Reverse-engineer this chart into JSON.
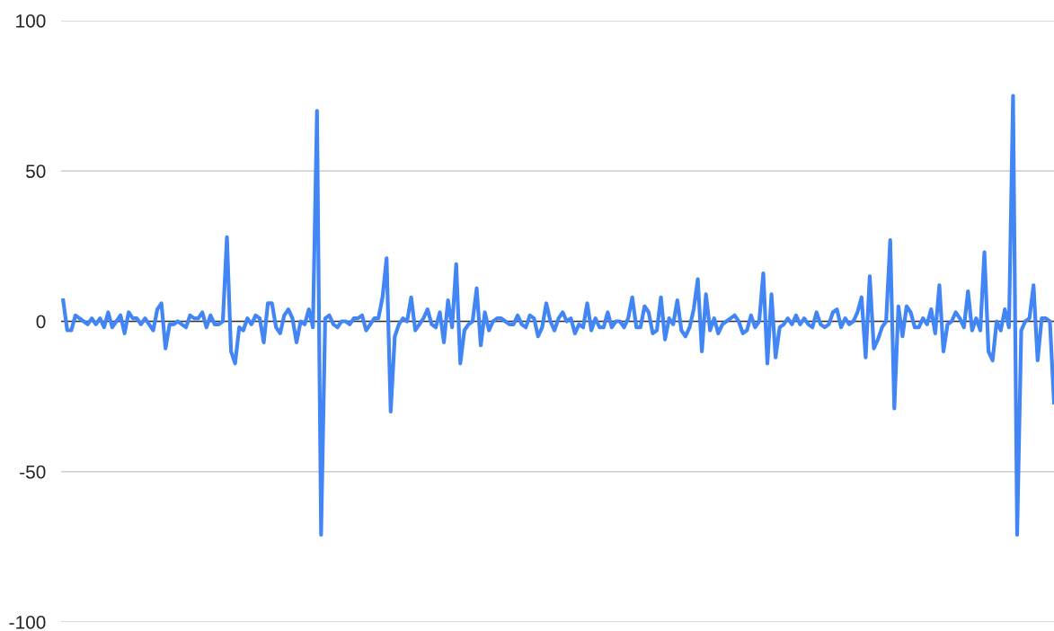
{
  "chart_data": {
    "type": "line",
    "categories": [
      null,
      null,
      null,
      null,
      null,
      null,
      null,
      null,
      null,
      null,
      null,
      null,
      null,
      null,
      null,
      null,
      null,
      null,
      null,
      null,
      null,
      null,
      null,
      null,
      null,
      null,
      null,
      null,
      null,
      null,
      null,
      null,
      null,
      null,
      null,
      null,
      null,
      null,
      null,
      null,
      null,
      null,
      null,
      null,
      null,
      null,
      null,
      null,
      null,
      null,
      null,
      null,
      null,
      null,
      null,
      null,
      null,
      null,
      null,
      null,
      null,
      null,
      null,
      null,
      null,
      null,
      null,
      null,
      null,
      null,
      null,
      null,
      null,
      null,
      null,
      null,
      null,
      null,
      null,
      null,
      null,
      null,
      null,
      null,
      null,
      null,
      null,
      null,
      null,
      null,
      null,
      null,
      null,
      null,
      null,
      null,
      null,
      null,
      null,
      null,
      null,
      null,
      null,
      null,
      null,
      null,
      null,
      null,
      null,
      null,
      null,
      null,
      null,
      null,
      null,
      null,
      null,
      null,
      null,
      null,
      null,
      null,
      null,
      null,
      null,
      null,
      null,
      null,
      null,
      null,
      null,
      null,
      null,
      null,
      null,
      null,
      null,
      null,
      null,
      null,
      null,
      null,
      null,
      null,
      null,
      null,
      null,
      null,
      null,
      null,
      null,
      null,
      null,
      null,
      null,
      null,
      null,
      null,
      null,
      null,
      null,
      null,
      null,
      null,
      null,
      null,
      null,
      null,
      null,
      null,
      null,
      null,
      null,
      null,
      null,
      null,
      null,
      null,
      null,
      null,
      null,
      null,
      null,
      null,
      null,
      null,
      null,
      null,
      null,
      null,
      null,
      null,
      null,
      null,
      null,
      null,
      null,
      null,
      null,
      null,
      null,
      null,
      null,
      null,
      null,
      null,
      null,
      null,
      null,
      null,
      null,
      null,
      null,
      null,
      null,
      null,
      null,
      null,
      null,
      null,
      null,
      null,
      null,
      null,
      null,
      null,
      null,
      null,
      null,
      null,
      null,
      null,
      null,
      null,
      null,
      null,
      null,
      null,
      null,
      null,
      null,
      null,
      null
    ],
    "series": [
      {
        "color": "#4285f4",
        "values": [
          7,
          -3,
          -3,
          2,
          1,
          0,
          -1,
          1,
          -1,
          1,
          -2,
          3,
          -2,
          0,
          2,
          -4,
          3,
          1,
          1,
          -1,
          1,
          -1,
          -3,
          4,
          6,
          -9,
          -1,
          -1,
          0,
          -1,
          -2,
          2,
          1,
          1,
          3,
          -2,
          2,
          -1,
          -1,
          0,
          28,
          -10,
          -14,
          -2,
          -3,
          1,
          -1,
          2,
          1,
          -7,
          6,
          6,
          -2,
          -4,
          2,
          4,
          1,
          -7,
          0,
          -1,
          4,
          -2,
          70,
          -71,
          1,
          2,
          -1,
          -2,
          0,
          0,
          -1,
          1,
          1,
          2,
          -3,
          -1,
          1,
          1,
          8,
          21,
          -30,
          -5,
          -1,
          1,
          0,
          8,
          -3,
          -1,
          1,
          4,
          -1,
          -2,
          3,
          -7,
          7,
          -2,
          19,
          -14,
          -3,
          -1,
          0,
          11,
          -8,
          3,
          -3,
          0,
          1,
          1,
          0,
          -1,
          -1,
          2,
          -1,
          -2,
          2,
          1,
          -5,
          -2,
          6,
          0,
          -3,
          1,
          3,
          0,
          1,
          -4,
          -1,
          -2,
          6,
          -3,
          1,
          -2,
          -2,
          3,
          -2,
          0,
          0,
          -2,
          1,
          8,
          -2,
          -2,
          5,
          3,
          -4,
          -3,
          8,
          -6,
          1,
          -1,
          7,
          -3,
          -5,
          -2,
          4,
          14,
          -10,
          9,
          -3,
          1,
          -4,
          -1,
          0,
          1,
          2,
          0,
          -4,
          -3,
          2,
          -2,
          0,
          16,
          -14,
          9,
          -12,
          -2,
          -1,
          1,
          -1,
          2,
          -1,
          1,
          -1,
          -2,
          3,
          -1,
          -2,
          -1,
          3,
          4,
          -2,
          1,
          -1,
          0,
          3,
          8,
          -12,
          15,
          -9,
          -6,
          -2,
          0,
          27,
          -29,
          5,
          -5,
          5,
          3,
          -2,
          -2,
          1,
          -1,
          4,
          -4,
          12,
          -10,
          -1,
          0,
          3,
          1,
          -2,
          10,
          -3,
          1,
          -3,
          23,
          -10,
          -13,
          0,
          -3,
          4,
          -2,
          75,
          -71,
          -3,
          0,
          1,
          12,
          -13,
          1,
          1,
          0,
          -27
        ]
      }
    ],
    "ylim": [
      -100,
      100
    ],
    "yticks": [
      -100,
      -50,
      0,
      50,
      100
    ],
    "grid": "y",
    "legend": false,
    "line_style": "solid",
    "ref_lines": [
      {
        "axis": "y",
        "value": 0,
        "color": "#333333"
      }
    ]
  }
}
